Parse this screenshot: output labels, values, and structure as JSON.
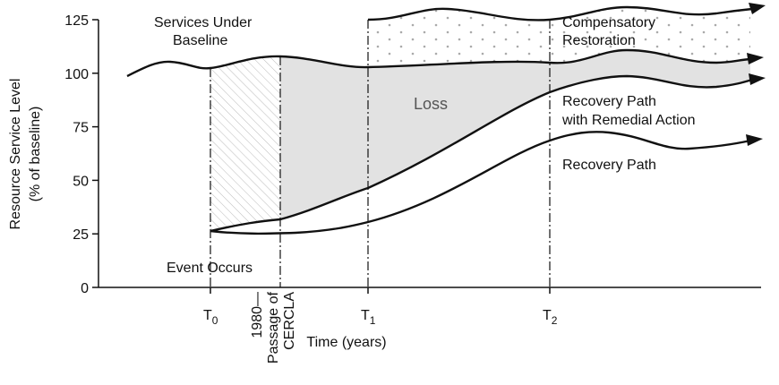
{
  "chart_data": {
    "type": "concept",
    "y_axis_label": [
      "Resource Service Level",
      "(% of baseline)"
    ],
    "x_axis_label": "Time (years)",
    "ylim": [
      0,
      125
    ],
    "yticks": [
      0,
      25,
      50,
      75,
      100,
      125
    ],
    "markers": [
      {
        "label": "T",
        "subscript": "0"
      },
      {
        "label": "T",
        "subscript": "1"
      },
      {
        "label": "T",
        "subscript": "2"
      }
    ],
    "cercla_label": [
      "1980—",
      "Passage of",
      "CERCLA"
    ],
    "annotations": {
      "baseline": [
        "Services Under",
        "Baseline"
      ],
      "compensatory": [
        "Compensatory",
        "Restoration"
      ],
      "loss": "Loss",
      "remedial": [
        "Recovery Path",
        "with Remedial Action"
      ],
      "recovery": "Recovery Path",
      "event": "Event Occurs"
    }
  }
}
